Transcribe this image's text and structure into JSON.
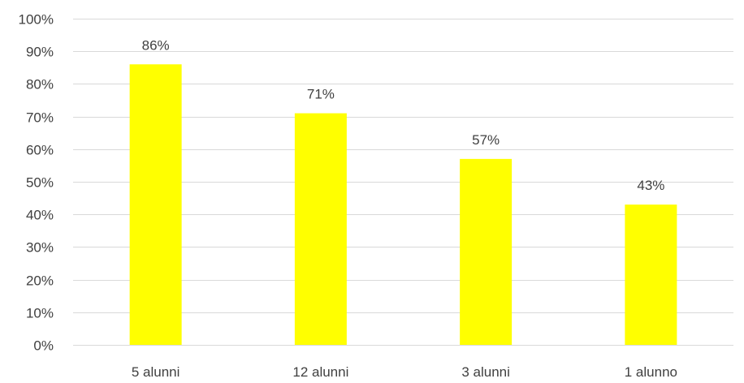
{
  "chart_data": {
    "type": "bar",
    "categories": [
      "5 alunni",
      "12 alunni",
      "3 alunni",
      "1 alunno"
    ],
    "values": [
      86,
      71,
      57,
      43
    ],
    "data_labels": [
      "86%",
      "71%",
      "57%",
      "43%"
    ],
    "title": "",
    "xlabel": "",
    "ylabel": "",
    "ylim": [
      0,
      100
    ],
    "y_ticks": [
      0,
      10,
      20,
      30,
      40,
      50,
      60,
      70,
      80,
      90,
      100
    ],
    "y_tick_labels": [
      "0%",
      "10%",
      "20%",
      "30%",
      "40%",
      "50%",
      "60%",
      "70%",
      "80%",
      "90%",
      "100%"
    ],
    "grid": true,
    "legend": "none",
    "colors": {
      "bar": "#FFFF00"
    }
  }
}
